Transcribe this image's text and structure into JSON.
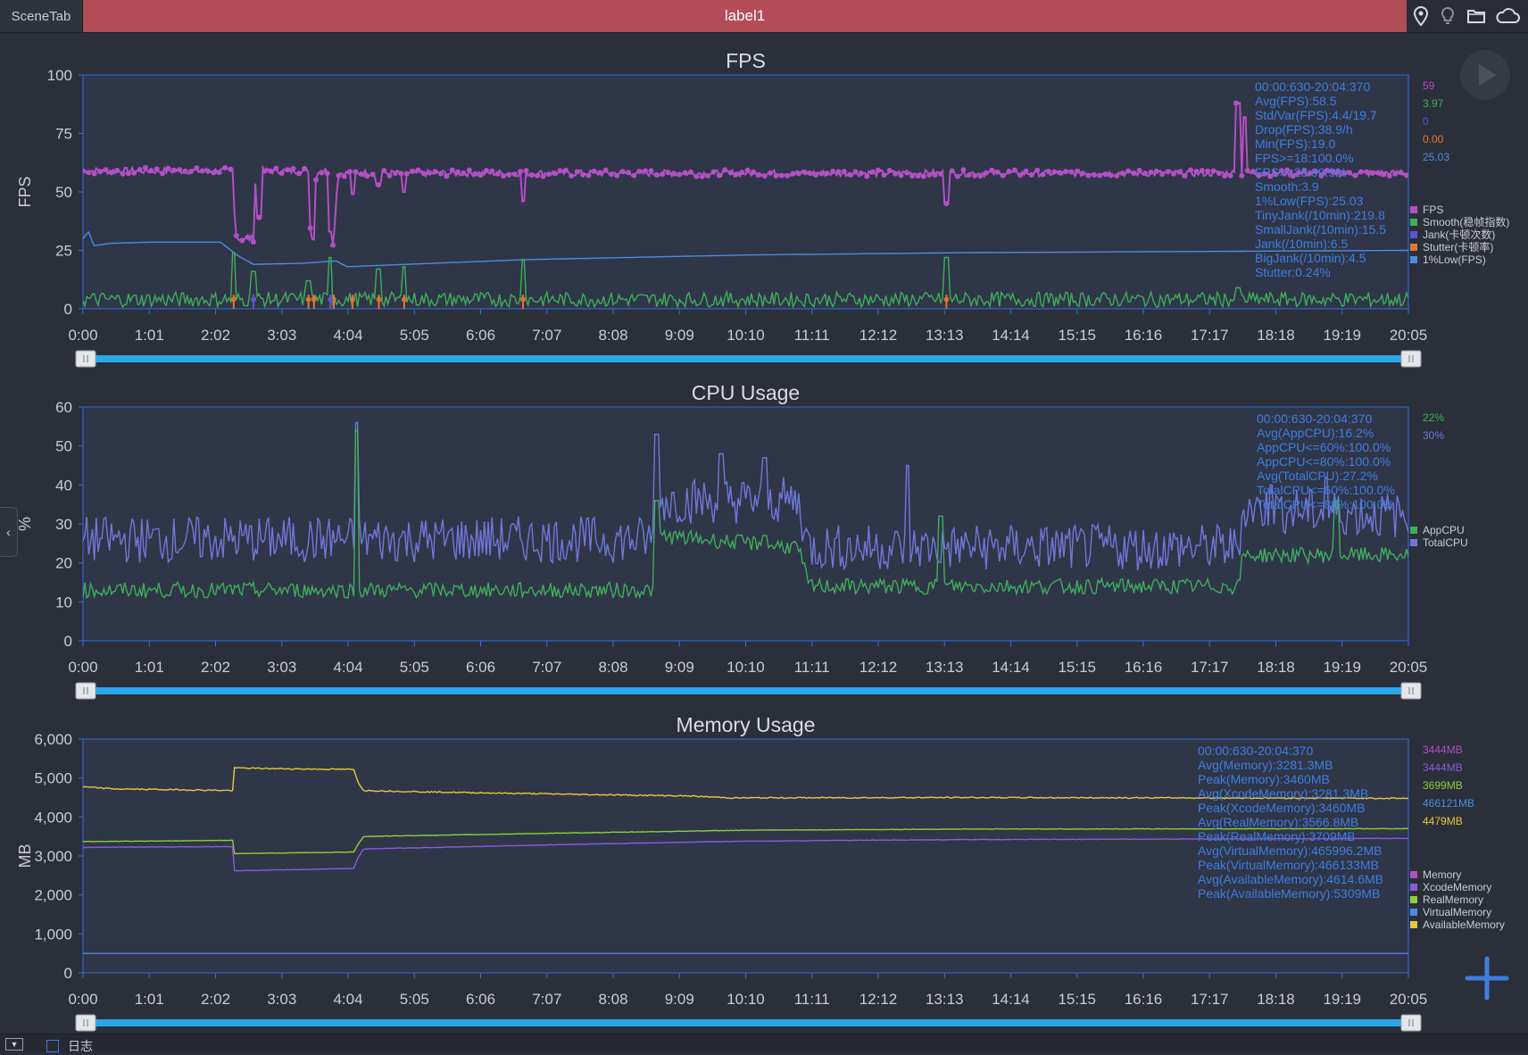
{
  "tabs": {
    "scene_tab": "SceneTab",
    "active_label": "label1"
  },
  "toolbar_icons": [
    "location-pin-icon",
    "bulb-icon",
    "folder-icon",
    "cloud-icon"
  ],
  "bottom": {
    "log_label": "日志"
  },
  "chart_data": [
    {
      "type": "line",
      "title": "FPS",
      "ylabel": "FPS",
      "ylim": [
        0,
        100
      ],
      "yticks": [
        0,
        25,
        50,
        75,
        100
      ],
      "xticks": [
        "0:00",
        "1:01",
        "2:02",
        "3:03",
        "4:04",
        "5:05",
        "6:06",
        "7:07",
        "8:08",
        "9:09",
        "10:10",
        "11:11",
        "12:12",
        "13:13",
        "14:14",
        "15:15",
        "16:16",
        "17:17",
        "18:18",
        "19:19",
        "20:05"
      ],
      "xlim_seconds": [
        0,
        1205
      ],
      "stats_color": "#3f7de0",
      "stats": [
        "00:00:630-20:04:370",
        "Avg(FPS):58.5",
        "Std/Var(FPS):4.4/19.7",
        "Drop(FPS):38.9/h",
        "Min(FPS):19.0",
        "FPS>=18:100.0%",
        "FPS>=25:99.9%",
        "Smooth:3.9",
        "1%Low(FPS):25.03",
        "TinyJank(/10min):219.8",
        "SmallJank(/10min):15.5",
        "Jank(/10min):6.5",
        "BigJank(/10min):4.5",
        "Stutter:0.24%"
      ],
      "current_values": [
        {
          "text": "59",
          "color": "#b44fc6"
        },
        {
          "text": "3.97",
          "color": "#3fae5a"
        },
        {
          "text": "0",
          "color": "#5a52d9"
        },
        {
          "text": "0.00",
          "color": "#e0782e"
        },
        {
          "text": "25.03",
          "color": "#4a8de0"
        }
      ],
      "legend": [
        {
          "name": "FPS",
          "color": "#b44fc6"
        },
        {
          "name": "Smooth(稳帧指数)",
          "color": "#3fae5a"
        },
        {
          "name": "Jank(卡顿次数)",
          "color": "#5a52d9"
        },
        {
          "name": "Stutter(卡顿率)",
          "color": "#e0782e"
        },
        {
          "name": "1%Low(FPS)",
          "color": "#4a8de0"
        }
      ],
      "series": [
        {
          "name": "FPS",
          "color": "#b44fc6",
          "baseline": 59,
          "amp": 1.4,
          "markers": true,
          "segments": [
            [
              0,
              59
            ],
            [
              136,
              59
            ],
            [
              137,
              44
            ],
            [
              140,
              30
            ],
            [
              155,
              30
            ],
            [
              157,
              59
            ],
            [
              177,
              59
            ],
            [
              178,
              59
            ],
            [
              205,
              59
            ],
            [
              206,
              38
            ],
            [
              207,
              32
            ],
            [
              210,
              30
            ],
            [
              212,
              59
            ],
            [
              225,
              59
            ],
            [
              226,
              22
            ],
            [
              228,
              30
            ],
            [
              230,
              46
            ],
            [
              232,
              58
            ],
            [
              240,
              58
            ],
            [
              1205,
              58
            ]
          ],
          "spikes": [
            [
              160,
              39
            ],
            [
              225,
              33
            ],
            [
              245,
              49
            ],
            [
              269,
              53
            ],
            [
              292,
              50
            ],
            [
              400,
              46
            ],
            [
              785,
              45
            ],
            [
              1050,
              88
            ],
            [
              1056,
              82
            ]
          ]
        },
        {
          "name": "1%Low(FPS)",
          "color": "#4a8de0",
          "amp": 0,
          "markers": false,
          "segments": [
            [
              0,
              30
            ],
            [
              5,
              33
            ],
            [
              10,
              27
            ],
            [
              25,
              28
            ],
            [
              60,
              28.5
            ],
            [
              125,
              28.5
            ],
            [
              140,
              23
            ],
            [
              155,
              19
            ],
            [
              200,
              19.5
            ],
            [
              230,
              20.5
            ],
            [
              240,
              18
            ],
            [
              400,
              21
            ],
            [
              600,
              23
            ],
            [
              800,
              24
            ],
            [
              1000,
              24.5
            ],
            [
              1205,
              25
            ]
          ]
        },
        {
          "name": "Smooth(稳帧指数)",
          "color": "#3fae5a",
          "baseline": 4,
          "amp": 3.2,
          "markers": false,
          "spikes": [
            [
              137,
              24
            ],
            [
              155,
              16
            ],
            [
              205,
              12
            ],
            [
              225,
              22
            ],
            [
              269,
              17
            ],
            [
              292,
              18
            ],
            [
              400,
              21
            ],
            [
              785,
              22
            ],
            [
              1050,
              9
            ]
          ]
        },
        {
          "name": "Stutter(卡顿率)",
          "color": "#e0782e",
          "amp": 0,
          "markers": false,
          "blips": [
            137,
            155,
            205,
            210,
            225,
            228,
            245,
            269,
            292,
            400,
            785
          ]
        },
        {
          "name": "Jank(卡顿次数)",
          "color": "#5a52d9",
          "amp": 0,
          "markers": false,
          "blips": [
            155,
            225
          ]
        }
      ]
    },
    {
      "type": "line",
      "title": "CPU Usage",
      "ylabel": "%",
      "ylim": [
        0,
        60
      ],
      "yticks": [
        0,
        10,
        20,
        30,
        40,
        50,
        60
      ],
      "xticks": [
        "0:00",
        "1:01",
        "2:02",
        "3:03",
        "4:04",
        "5:05",
        "6:06",
        "7:07",
        "8:08",
        "9:09",
        "10:10",
        "11:11",
        "12:12",
        "13:13",
        "14:14",
        "15:15",
        "16:16",
        "17:17",
        "18:18",
        "19:19",
        "20:05"
      ],
      "xlim_seconds": [
        0,
        1205
      ],
      "stats_color": "#3f7de0",
      "stats": [
        "00:00:630-20:04:370",
        "Avg(AppCPU):16.2%",
        "AppCPU<=60%:100.0%",
        "AppCPU<=80%:100.0%",
        "Avg(TotalCPU):27.2%",
        "TotalCPU<=60%:100.0%",
        "TotalCPU<=80%:100.0%"
      ],
      "current_values": [
        {
          "text": "22%",
          "color": "#3fae5a"
        },
        {
          "text": "30%",
          "color": "#6e78d8"
        }
      ],
      "legend": [
        {
          "name": "AppCPU",
          "color": "#3fae5a"
        },
        {
          "name": "TotalCPU",
          "color": "#6e78d8"
        }
      ],
      "series": [
        {
          "name": "TotalCPU",
          "color": "#6e78d8",
          "amp": 6,
          "markers": false,
          "segments": [
            [
              0,
              26
            ],
            [
              520,
              26
            ],
            [
              522,
              36
            ],
            [
              650,
              36
            ],
            [
              660,
              24
            ],
            [
              1050,
              24
            ],
            [
              1055,
              34
            ],
            [
              1205,
              32
            ]
          ],
          "spikes": [
            [
              249,
              56
            ],
            [
              522,
              53
            ],
            [
              580,
              48
            ],
            [
              620,
              47
            ],
            [
              750,
              45
            ],
            [
              1080,
              40
            ],
            [
              1130,
              42
            ]
          ]
        },
        {
          "name": "AppCPU",
          "color": "#3fae5a",
          "amp": 2,
          "markers": false,
          "segments": [
            [
              0,
              13
            ],
            [
              520,
              13
            ],
            [
              522,
              27
            ],
            [
              650,
              24
            ],
            [
              660,
              14
            ],
            [
              1050,
              14
            ],
            [
              1055,
              22
            ],
            [
              1205,
              22
            ]
          ],
          "spikes": [
            [
              249,
              54
            ],
            [
              522,
              36
            ],
            [
              620,
              27
            ],
            [
              780,
              32
            ],
            [
              1140,
              36
            ]
          ]
        }
      ]
    },
    {
      "type": "line",
      "title": "Memory Usage",
      "ylabel": "MB",
      "ylim": [
        0,
        6000
      ],
      "yticks": [
        0,
        1000,
        2000,
        3000,
        4000,
        5000,
        6000
      ],
      "xticks": [
        "0:00",
        "1:01",
        "2:02",
        "3:03",
        "4:04",
        "5:05",
        "6:06",
        "7:07",
        "8:08",
        "9:09",
        "10:10",
        "11:11",
        "12:12",
        "13:13",
        "14:14",
        "15:15",
        "16:16",
        "17:17",
        "18:18",
        "19:19",
        "20:05"
      ],
      "xlim_seconds": [
        0,
        1205
      ],
      "stats_color": "#3f7de0",
      "stats": [
        "00:00:630-20:04:370",
        "Avg(Memory):3281.3MB",
        "Peak(Memory):3460MB",
        "Avg(XcodeMemory):3281.3MB",
        "Peak(XcodeMemory):3460MB",
        "Avg(RealMemory):3566.8MB",
        "Peak(RealMemory):3709MB",
        "Avg(VirtualMemory):465996.2MB",
        "Peak(VirtualMemory):466133MB",
        "Avg(AvailableMemory):4614.6MB",
        "Peak(AvailableMemory):5309MB"
      ],
      "current_values": [
        {
          "text": "3444MB",
          "color": "#b44fc6"
        },
        {
          "text": "3444MB",
          "color": "#8a5ae0"
        },
        {
          "text": "3699MB",
          "color": "#8ccf3a"
        },
        {
          "text": "466121MB",
          "color": "#4a8de0"
        },
        {
          "text": "4479MB",
          "color": "#e6c83a"
        }
      ],
      "legend": [
        {
          "name": "Memory",
          "color": "#b44fc6"
        },
        {
          "name": "XcodeMemory",
          "color": "#8a5ae0"
        },
        {
          "name": "RealMemory",
          "color": "#8ccf3a"
        },
        {
          "name": "VirtualMemory",
          "color": "#4a8de0"
        },
        {
          "name": "AvailableMemory",
          "color": "#e6c83a"
        }
      ],
      "series": [
        {
          "name": "AvailableMemory",
          "color": "#e6c83a",
          "amp": 15,
          "markers": false,
          "segments": [
            [
              0,
              4770
            ],
            [
              30,
              4720
            ],
            [
              136,
              4680
            ],
            [
              137,
              5260
            ],
            [
              170,
              5240
            ],
            [
              246,
              5220
            ],
            [
              250,
              4900
            ],
            [
              255,
              4680
            ],
            [
              320,
              4640
            ],
            [
              450,
              4580
            ],
            [
              550,
              4540
            ],
            [
              590,
              4490
            ],
            [
              800,
              4500
            ],
            [
              1205,
              4480
            ]
          ]
        },
        {
          "name": "RealMemory",
          "color": "#8ccf3a",
          "amp": 6,
          "markers": false,
          "segments": [
            [
              0,
              3370
            ],
            [
              136,
              3400
            ],
            [
              137,
              3060
            ],
            [
              246,
              3100
            ],
            [
              250,
              3300
            ],
            [
              255,
              3500
            ],
            [
              400,
              3570
            ],
            [
              600,
              3660
            ],
            [
              800,
              3690
            ],
            [
              1205,
              3700
            ]
          ]
        },
        {
          "name": "XcodeMemory",
          "color": "#8a5ae0",
          "amp": 6,
          "markers": false,
          "segments": [
            [
              0,
              3220
            ],
            [
              136,
              3240
            ],
            [
              137,
              2620
            ],
            [
              246,
              2680
            ],
            [
              250,
              2950
            ],
            [
              255,
              3180
            ],
            [
              450,
              3300
            ],
            [
              600,
              3380
            ],
            [
              800,
              3420
            ],
            [
              1205,
              3450
            ]
          ]
        },
        {
          "name": "VirtualMemory",
          "color": "#4a8de0",
          "amp": 0,
          "markers": false,
          "segments": [
            [
              0,
              500
            ],
            [
              1205,
              500
            ]
          ]
        }
      ]
    }
  ]
}
